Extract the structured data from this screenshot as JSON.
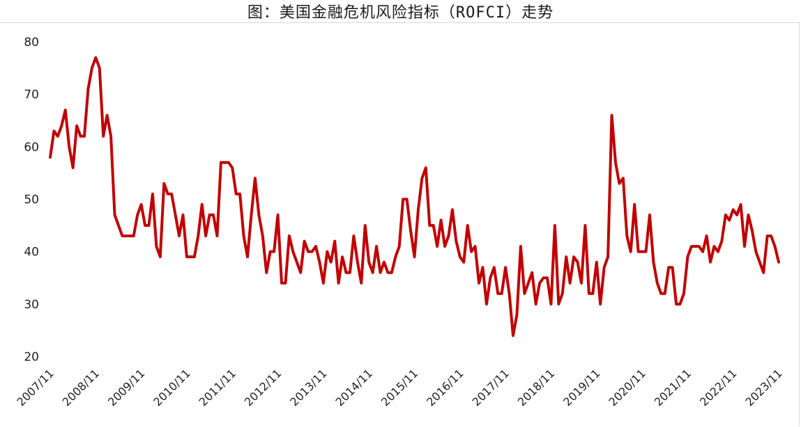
{
  "chart_data": {
    "type": "line",
    "title": "图：美国金融危机风险指标（ROFCI）走势",
    "xlabel": "",
    "ylabel": "",
    "ylim": [
      20,
      80
    ],
    "yticks": [
      20,
      30,
      40,
      50,
      60,
      70,
      80
    ],
    "x_tick_labels": [
      "2007/11",
      "2008/11",
      "2009/11",
      "2010/11",
      "2011/11",
      "2012/11",
      "2013/11",
      "2014/11",
      "2015/11",
      "2016/11",
      "2017/11",
      "2018/11",
      "2019/11",
      "2020/11",
      "2021/11",
      "2022/11",
      "2023/11"
    ],
    "x_start": "2007/11",
    "x_end": "2023/11",
    "grid": false,
    "legend": "none",
    "line_color": "#c00000",
    "series": [
      {
        "values": [
          58,
          63,
          62,
          64,
          67,
          60,
          56,
          64,
          62,
          62,
          71,
          75,
          77,
          75,
          62,
          66,
          62,
          47,
          45,
          43,
          43,
          43,
          43,
          47,
          49,
          45,
          45,
          51,
          41,
          39,
          53,
          51,
          51,
          47,
          43,
          47,
          39,
          39,
          39,
          43,
          49,
          43,
          47,
          47,
          43,
          57,
          57,
          57,
          56,
          51,
          51,
          43,
          39,
          47,
          54,
          47,
          43,
          36,
          40,
          40,
          47,
          34,
          34,
          43,
          40,
          38,
          36,
          42,
          40,
          40,
          41,
          38,
          34,
          40,
          38,
          42,
          34,
          39,
          36,
          36,
          43,
          38,
          34,
          45,
          38,
          36,
          41,
          36,
          38,
          36,
          36,
          39,
          41,
          50,
          50,
          44,
          39,
          48,
          54,
          56,
          45,
          45,
          41,
          46,
          41,
          43,
          48,
          42,
          39,
          38,
          45,
          40,
          41,
          34,
          37,
          30,
          35,
          37,
          32,
          32,
          37,
          32,
          24,
          28,
          41,
          32,
          34,
          36,
          30,
          34,
          35,
          35,
          30,
          45,
          30,
          32,
          39,
          34,
          39,
          38,
          34,
          45,
          32,
          32,
          38,
          30,
          37,
          39,
          66,
          57,
          53,
          54,
          43,
          40,
          49,
          40,
          40,
          40,
          47,
          38,
          34,
          32,
          32,
          37,
          37,
          30,
          30,
          32,
          39,
          41,
          41,
          41,
          40,
          43,
          38,
          41,
          40,
          42,
          47,
          46,
          48,
          47,
          49,
          41,
          47,
          44,
          40,
          38,
          36,
          43,
          43,
          41,
          38
        ]
      }
    ]
  }
}
